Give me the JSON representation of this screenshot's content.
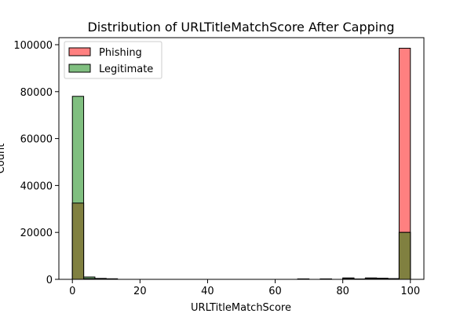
{
  "chart_data": {
    "type": "bar",
    "title": "Distribution of URLTitleMatchScore After Capping",
    "xlabel": "URLTitleMatchScore",
    "ylabel": "Count",
    "xlim": [
      -4,
      104
    ],
    "ylim": [
      0,
      103000
    ],
    "bin_width": 3.333,
    "x_ticks": [
      0,
      20,
      40,
      60,
      80,
      100
    ],
    "y_ticks": [
      0,
      20000,
      40000,
      60000,
      80000,
      100000
    ],
    "x_tick_labels": [
      "0",
      "20",
      "40",
      "60",
      "80",
      "100"
    ],
    "y_tick_labels": [
      "0",
      "20000",
      "40000",
      "60000",
      "80000",
      "100000"
    ],
    "legend_position": "top-left",
    "colors": {
      "phishing": "#ff8080",
      "legitimate": "#80bf80",
      "overlap": "#808040",
      "edge": "#000000"
    },
    "series": [
      {
        "name": "Phishing",
        "bins": [
          {
            "x0": 0.0,
            "count": 32500
          },
          {
            "x0": 3.333,
            "count": 300
          },
          {
            "x0": 6.667,
            "count": 150
          },
          {
            "x0": 10.0,
            "count": 80
          },
          {
            "x0": 66.667,
            "count": 200
          },
          {
            "x0": 73.333,
            "count": 200
          },
          {
            "x0": 80.0,
            "count": 600
          },
          {
            "x0": 83.333,
            "count": 150
          },
          {
            "x0": 86.667,
            "count": 600
          },
          {
            "x0": 90.0,
            "count": 500
          },
          {
            "x0": 93.333,
            "count": 300
          },
          {
            "x0": 96.667,
            "count": 98500
          }
        ]
      },
      {
        "name": "Legitimate",
        "bins": [
          {
            "x0": 0.0,
            "count": 78000
          },
          {
            "x0": 3.333,
            "count": 1000
          },
          {
            "x0": 6.667,
            "count": 400
          },
          {
            "x0": 10.0,
            "count": 250
          },
          {
            "x0": 66.667,
            "count": 100
          },
          {
            "x0": 73.333,
            "count": 150
          },
          {
            "x0": 80.0,
            "count": 300
          },
          {
            "x0": 83.333,
            "count": 100
          },
          {
            "x0": 86.667,
            "count": 300
          },
          {
            "x0": 90.0,
            "count": 300
          },
          {
            "x0": 93.333,
            "count": 200
          },
          {
            "x0": 96.667,
            "count": 20000
          }
        ]
      }
    ]
  }
}
